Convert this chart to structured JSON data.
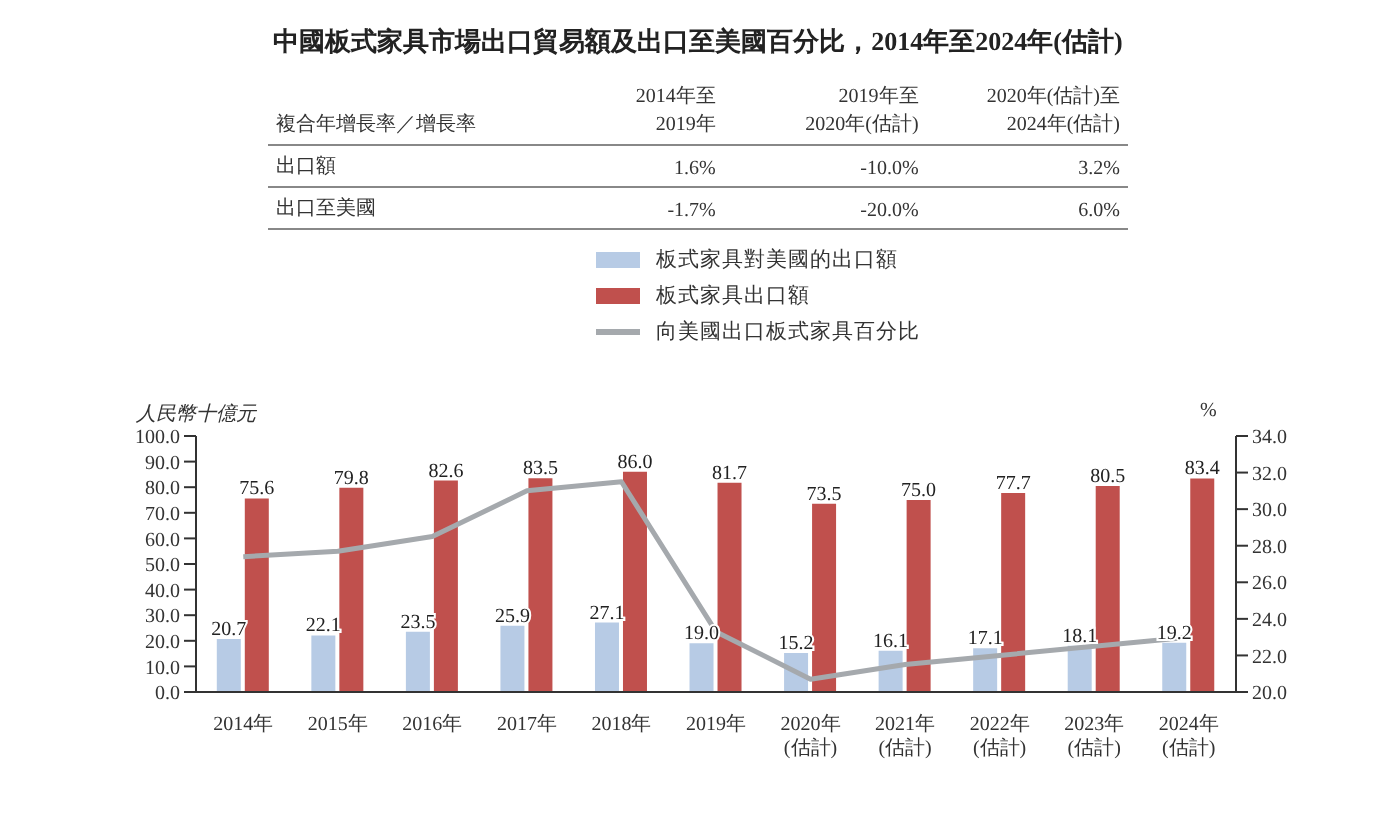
{
  "chart_data": {
    "type": "bar",
    "title": "中國板式家具市場出口貿易額及出口至美國百分比，2014年至2024年(估計)",
    "annotations": [
      "複合年增長率／增長率",
      "2014年至\n2019年",
      "2019年至\n2020年(估計)",
      "2020年(估計)至\n2024年(估計)",
      "出口額",
      "1.6%",
      "-10.0%",
      "3.2%",
      "出口至美國",
      "-1.7%",
      "-20.0%",
      "6.0%"
    ],
    "ylabel": "人民幣十億元",
    "y2label": "%",
    "categories": [
      "2014年",
      "2015年",
      "2016年",
      "2017年",
      "2018年",
      "2019年",
      "2020年\n(估計)",
      "2021年\n(估計)",
      "2022年\n(估計)",
      "2023年\n(估計)",
      "2024年\n(估計)"
    ],
    "series": [
      {
        "name": "板式家具對美國的出口額",
        "color": "#b7cbe5",
        "values": [
          20.7,
          22.1,
          23.5,
          25.9,
          27.1,
          19.0,
          15.2,
          16.1,
          17.1,
          18.1,
          19.2
        ],
        "value_labels": [
          "20.7",
          "22.1",
          "23.5",
          "25.9",
          "27.1",
          "19.0",
          "15.2",
          "16.1",
          "17.1",
          "18.1",
          "19.2"
        ]
      },
      {
        "name": "板式家具出口額",
        "color": "#c0504d",
        "values": [
          75.6,
          79.8,
          82.6,
          83.5,
          86.0,
          81.7,
          73.5,
          75.0,
          77.7,
          80.5,
          83.4
        ],
        "value_labels": [
          "75.6",
          "79.8",
          "82.6",
          "83.5",
          "86.0",
          "81.7",
          "73.5",
          "75.0",
          "77.7",
          "80.5",
          "83.4"
        ]
      },
      {
        "name": "向美國出口板式家具百分比",
        "type": "line",
        "axis": "y2",
        "color": "#a5a9ad",
        "values": [
          27.4,
          27.7,
          28.5,
          31.0,
          31.5,
          23.3,
          20.7,
          21.5,
          22.0,
          22.5,
          23.0
        ]
      }
    ],
    "ylim": [
      0,
      100
    ],
    "yticks": [
      {
        "value": 0,
        "label": "0.0"
      },
      {
        "value": 10,
        "label": "10.0"
      },
      {
        "value": 20,
        "label": "20.0"
      },
      {
        "value": 30,
        "label": "30.0"
      },
      {
        "value": 40,
        "label": "40.0"
      },
      {
        "value": 50,
        "label": "50.0"
      },
      {
        "value": 60,
        "label": "60.0"
      },
      {
        "value": 70,
        "label": "70.0"
      },
      {
        "value": 80,
        "label": "80.0"
      },
      {
        "value": 90,
        "label": "90.0"
      },
      {
        "value": 100,
        "label": "100.0"
      }
    ],
    "y2lim": [
      20,
      34
    ],
    "y2ticks": [
      {
        "value": 20,
        "label": "20.0"
      },
      {
        "value": 22,
        "label": "22.0"
      },
      {
        "value": 24,
        "label": "24.0"
      },
      {
        "value": 26,
        "label": "26.0"
      },
      {
        "value": 28,
        "label": "28.0"
      },
      {
        "value": 30,
        "label": "30.0"
      },
      {
        "value": 32,
        "label": "32.0"
      },
      {
        "value": 34,
        "label": "34.0"
      }
    ],
    "legend": "top",
    "grid": false,
    "marker": "none"
  }
}
